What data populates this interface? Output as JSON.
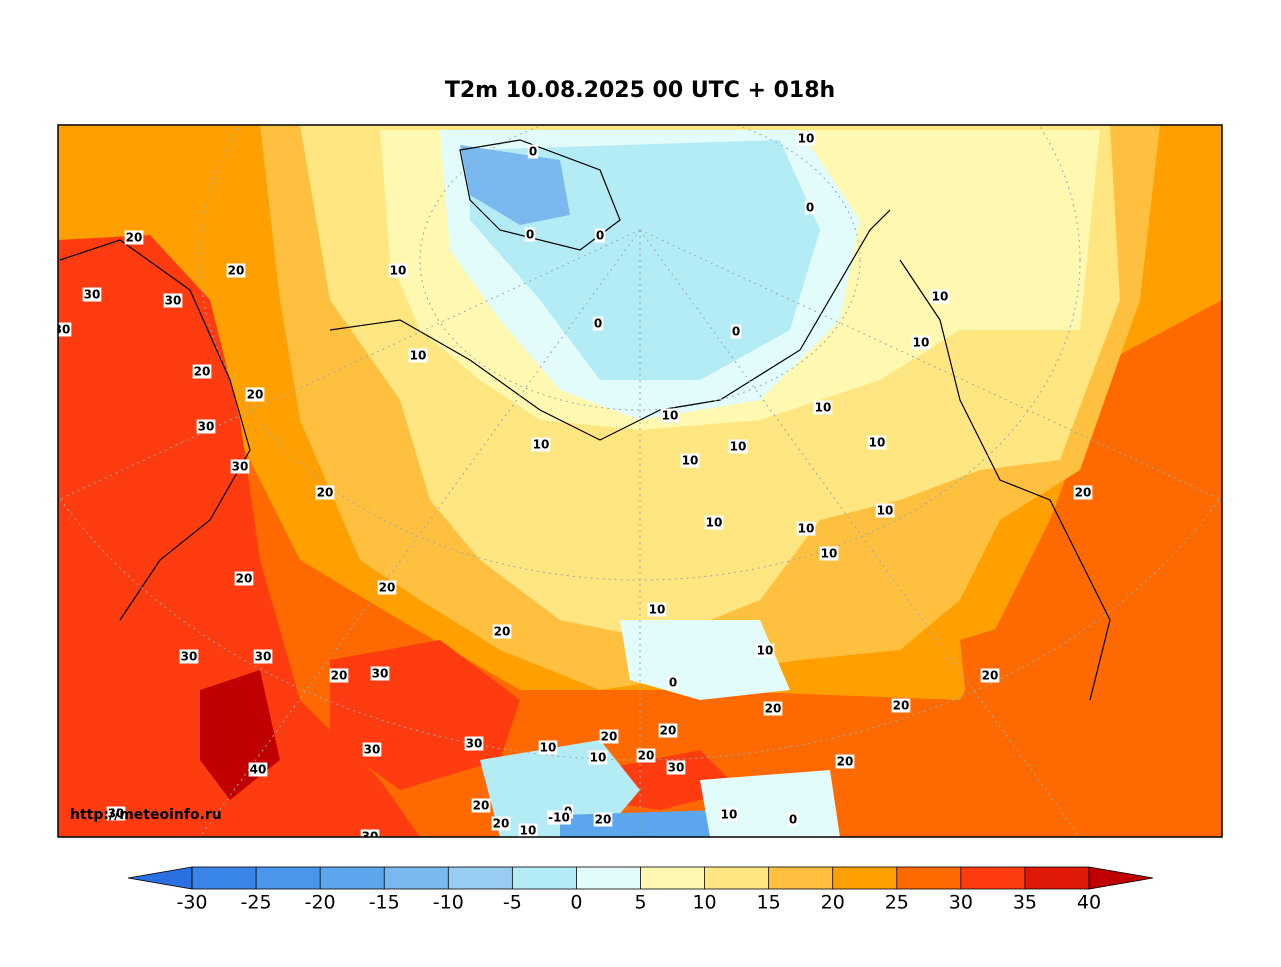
{
  "title": "T2m 10.08.2025 00 UTC + 018h",
  "watermark": "http://meteoinfo.ru",
  "colorbar": {
    "ticks": [
      -30,
      -25,
      -20,
      -15,
      -10,
      -5,
      0,
      5,
      10,
      15,
      20,
      25,
      30,
      35,
      40
    ],
    "colors": [
      "#3a86e8",
      "#4a96ec",
      "#5ca6ee",
      "#7ab8f0",
      "#98ccf2",
      "#b4ecf6",
      "#e2fbfb",
      "#fff8b0",
      "#ffe680",
      "#ffc040",
      "#ffa000",
      "#ff6a00",
      "#ff3c10",
      "#e01808"
    ],
    "under_color": "#2a70e0",
    "over_color": "#c00000"
  },
  "contour_labels": [
    10,
    0,
    0,
    0,
    0,
    20,
    20,
    10,
    30,
    30,
    10,
    30,
    0,
    0,
    10,
    10,
    20,
    20,
    10,
    30,
    10,
    10,
    10,
    10,
    10,
    30,
    20,
    20,
    10,
    10,
    10,
    10,
    20,
    20,
    10,
    20,
    10,
    30,
    30,
    20,
    30,
    0,
    20,
    20,
    20,
    20,
    20,
    30,
    10,
    30,
    20,
    10,
    20,
    30,
    40,
    20,
    0,
    30,
    20,
    -10,
    20,
    10,
    0,
    10,
    30
  ]
}
